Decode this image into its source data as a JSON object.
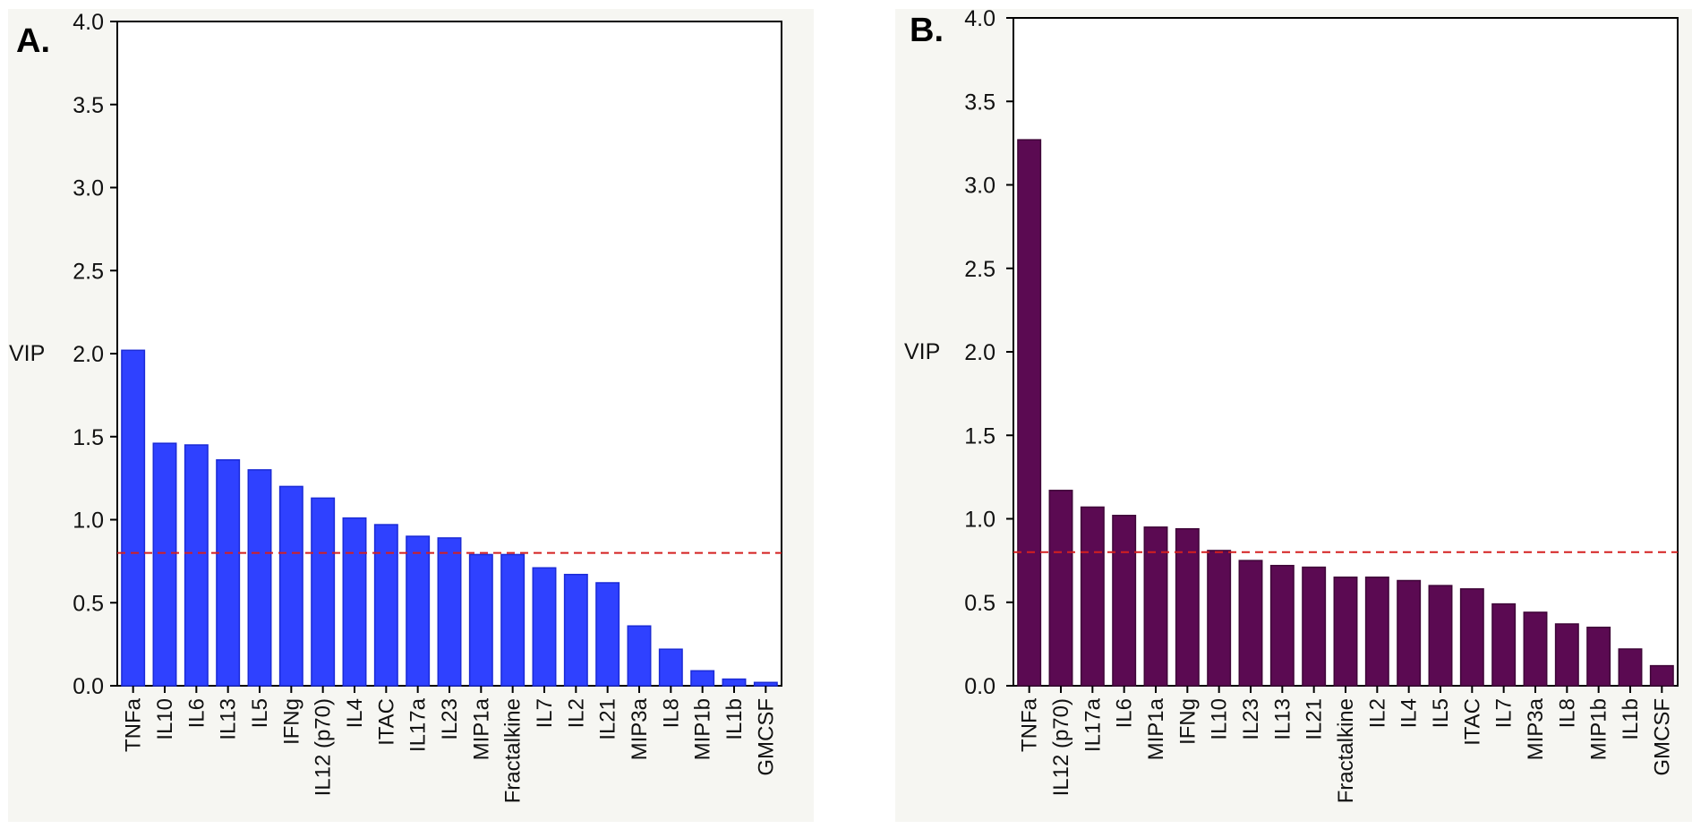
{
  "chart_data": [
    {
      "type": "bar",
      "panel_label": "A.",
      "ylabel": "VIP",
      "xlabel": "",
      "ylim": [
        0,
        4.0
      ],
      "yticks": [
        "0.0",
        "0.5",
        "1.0",
        "1.5",
        "2.0",
        "2.5",
        "3.0",
        "3.5",
        "4.0"
      ],
      "threshold": 0.8,
      "bar_color": "#2f41ff",
      "threshold_color": "#d42020",
      "categories": [
        "TNFa",
        "IL10",
        "IL6",
        "IL13",
        "IL5",
        "IFNg",
        "IL12 (p70)",
        "IL4",
        "ITAC",
        "IL17a",
        "IL23",
        "MIP1a",
        "Fractalkine",
        "IL7",
        "IL2",
        "IL21",
        "MIP3a",
        "IL8",
        "MIP1b",
        "IL1b",
        "GMCSF"
      ],
      "values": [
        2.02,
        1.46,
        1.45,
        1.36,
        1.3,
        1.2,
        1.13,
        1.01,
        0.97,
        0.9,
        0.89,
        0.79,
        0.79,
        0.71,
        0.67,
        0.62,
        0.36,
        0.22,
        0.09,
        0.04,
        0.02
      ]
    },
    {
      "type": "bar",
      "panel_label": "B.",
      "ylabel": "VIP",
      "xlabel": "",
      "ylim": [
        0,
        4.0
      ],
      "yticks": [
        "0.0",
        "0.5",
        "1.0",
        "1.5",
        "2.0",
        "2.5",
        "3.0",
        "3.5",
        "4.0"
      ],
      "threshold": 0.8,
      "bar_color": "#5b0a52",
      "threshold_color": "#d42020",
      "categories": [
        "TNFa",
        "IL12 (p70)",
        "IL17a",
        "IL6",
        "MIP1a",
        "IFNg",
        "IL10",
        "IL23",
        "IL13",
        "IL21",
        "Fractalkine",
        "IL2",
        "IL4",
        "IL5",
        "ITAC",
        "IL7",
        "MIP3a",
        "IL8",
        "MIP1b",
        "IL1b",
        "GMCSF"
      ],
      "values": [
        3.27,
        1.17,
        1.07,
        1.02,
        0.95,
        0.94,
        0.81,
        0.75,
        0.72,
        0.71,
        0.65,
        0.65,
        0.63,
        0.6,
        0.58,
        0.49,
        0.44,
        0.37,
        0.35,
        0.22,
        0.12
      ]
    }
  ]
}
